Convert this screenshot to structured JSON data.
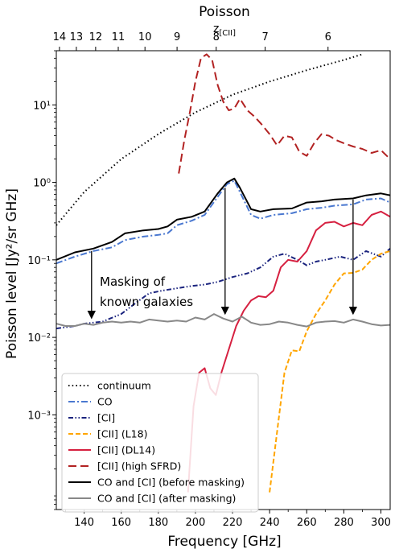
{
  "chart_data": {
    "type": "line",
    "title": "Poisson",
    "xlabel": "Frequency [GHz]",
    "ylabel": "Poisson level [Jy²/sr GHz]",
    "top_axis_label": "z[CII]",
    "x_range": [
      125,
      305
    ],
    "y_range": [
      6e-05,
      50
    ],
    "y_scale": "log",
    "x_ticks": [
      140,
      160,
      180,
      200,
      220,
      240,
      260,
      280,
      300
    ],
    "y_ticks": [
      {
        "value": 0.001,
        "label": "10⁻³"
      },
      {
        "value": 0.01,
        "label": "10⁻²"
      },
      {
        "value": 0.1,
        "label": "10⁻¹"
      },
      {
        "value": 1,
        "label": "10⁰"
      },
      {
        "value": 10,
        "label": "10¹"
      }
    ],
    "z_ticks": [
      {
        "z": "14",
        "freq": 126.7
      },
      {
        "z": "13",
        "freq": 135.8
      },
      {
        "z": "12",
        "freq": 146.2
      },
      {
        "z": "11",
        "freq": 158.4
      },
      {
        "z": "10",
        "freq": 172.8
      },
      {
        "z": "9",
        "freq": 190.1
      },
      {
        "z": "8",
        "freq": 211.2
      },
      {
        "z": "7",
        "freq": 237.6
      },
      {
        "z": "6",
        "freq": 271.5
      }
    ],
    "annotation": {
      "text_line1": "Masking of",
      "text_line2": "known galaxies",
      "arrows": [
        {
          "x": 144,
          "from": 0.13,
          "to": 0.015
        },
        {
          "x": 216,
          "from": 0.85,
          "to": 0.017
        },
        {
          "x": 285,
          "from": 0.6,
          "to": 0.017
        }
      ]
    },
    "legend_position": "lower-left",
    "series": [
      {
        "name": "continuum",
        "color": "#000000",
        "style": "dotted",
        "x": [
          125,
          140,
          160,
          180,
          200,
          220,
          240,
          260,
          280,
          290
        ],
        "y": [
          0.28,
          0.75,
          2.0,
          4.2,
          8.0,
          13.5,
          20.0,
          28.0,
          38.0,
          45.0
        ]
      },
      {
        "name": "CO",
        "color": "#4a78d0",
        "style": "dashdot",
        "x": [
          125,
          135,
          145,
          155,
          162,
          172,
          180,
          185,
          190,
          198,
          205,
          212,
          217,
          221,
          224,
          230,
          235,
          242,
          252,
          260,
          268,
          275,
          285,
          292,
          300,
          305
        ],
        "y": [
          0.09,
          0.11,
          0.13,
          0.145,
          0.18,
          0.2,
          0.21,
          0.22,
          0.28,
          0.32,
          0.38,
          0.65,
          0.95,
          1.05,
          0.75,
          0.38,
          0.34,
          0.38,
          0.4,
          0.45,
          0.47,
          0.5,
          0.52,
          0.6,
          0.62,
          0.55
        ]
      },
      {
        "name": "[CI]",
        "color": "#1a237e",
        "style": "dashdotdot",
        "x": [
          125,
          135,
          140,
          150,
          160,
          168,
          175,
          182,
          190,
          198,
          205,
          212,
          220,
          228,
          235,
          242,
          248,
          255,
          260,
          265,
          270,
          278,
          285,
          292,
          300,
          305
        ],
        "y": [
          0.013,
          0.014,
          0.015,
          0.016,
          0.02,
          0.028,
          0.037,
          0.04,
          0.043,
          0.046,
          0.048,
          0.052,
          0.06,
          0.067,
          0.08,
          0.11,
          0.12,
          0.1,
          0.085,
          0.095,
          0.1,
          0.11,
          0.1,
          0.13,
          0.11,
          0.14
        ]
      },
      {
        "name": "[CII] (L18)",
        "color": "#ffa500",
        "style": "dashed",
        "x": [
          240,
          244,
          248,
          252,
          256,
          260,
          265,
          270,
          275,
          280,
          285,
          290,
          295,
          300,
          305
        ],
        "y": [
          0.0001,
          0.0006,
          0.0035,
          0.0068,
          0.0066,
          0.012,
          0.02,
          0.03,
          0.048,
          0.067,
          0.068,
          0.075,
          0.1,
          0.12,
          0.13
        ]
      },
      {
        "name": "[CII] (DL14)",
        "color": "#d62040",
        "style": "solid",
        "x": [
          196,
          199,
          202,
          205,
          208,
          211,
          214,
          218,
          222,
          226,
          230,
          234,
          238,
          242,
          246,
          250,
          255,
          260,
          265,
          270,
          275,
          280,
          285,
          290,
          295,
          300,
          305
        ],
        "y": [
          0.0001,
          0.0013,
          0.0035,
          0.004,
          0.0022,
          0.0018,
          0.0035,
          0.007,
          0.014,
          0.022,
          0.03,
          0.034,
          0.033,
          0.04,
          0.08,
          0.1,
          0.095,
          0.13,
          0.24,
          0.3,
          0.31,
          0.27,
          0.3,
          0.28,
          0.38,
          0.42,
          0.36
        ]
      },
      {
        "name": "[CII] (high SFRD)",
        "color": "#b22222",
        "style": "longdash",
        "x": [
          191,
          194,
          197,
          200,
          203,
          206,
          209,
          212,
          215,
          218,
          221,
          224,
          228,
          232,
          236,
          240,
          244,
          248,
          252,
          256,
          260,
          264,
          268,
          272,
          276,
          280,
          285,
          290,
          295,
          300,
          305
        ],
        "y": [
          1.3,
          3.5,
          8.0,
          20.0,
          40.0,
          45.0,
          38.0,
          18.0,
          11.0,
          8.5,
          9.0,
          12.0,
          8.5,
          7.0,
          5.5,
          4.2,
          3.0,
          4.0,
          3.8,
          2.5,
          2.2,
          3.2,
          4.2,
          4.0,
          3.5,
          3.2,
          2.9,
          2.7,
          2.4,
          2.6,
          2.0
        ]
      },
      {
        "name": "CO and [CI] (before masking)",
        "color": "#000000",
        "style": "solid",
        "x": [
          125,
          135,
          145,
          155,
          162,
          172,
          180,
          185,
          190,
          198,
          205,
          212,
          217,
          221,
          224,
          230,
          235,
          242,
          252,
          260,
          268,
          275,
          285,
          292,
          300,
          305
        ],
        "y": [
          0.1,
          0.125,
          0.14,
          0.17,
          0.22,
          0.24,
          0.25,
          0.27,
          0.33,
          0.36,
          0.42,
          0.72,
          1.0,
          1.12,
          0.85,
          0.45,
          0.42,
          0.45,
          0.46,
          0.55,
          0.57,
          0.6,
          0.62,
          0.68,
          0.72,
          0.68
        ]
      },
      {
        "name": "CO and [CI] (after masking)",
        "color": "#888888",
        "style": "solid",
        "x": [
          125,
          130,
          135,
          140,
          145,
          150,
          155,
          160,
          165,
          170,
          175,
          180,
          185,
          190,
          195,
          200,
          205,
          210,
          215,
          220,
          225,
          230,
          235,
          240,
          245,
          250,
          255,
          260,
          265,
          270,
          275,
          280,
          285,
          290,
          295,
          300,
          305
        ],
        "y": [
          0.015,
          0.014,
          0.014,
          0.015,
          0.0145,
          0.0155,
          0.016,
          0.0155,
          0.016,
          0.0155,
          0.017,
          0.0165,
          0.016,
          0.0165,
          0.016,
          0.018,
          0.017,
          0.02,
          0.0175,
          0.016,
          0.0185,
          0.0155,
          0.0145,
          0.0148,
          0.016,
          0.0155,
          0.0145,
          0.0138,
          0.0155,
          0.016,
          0.0162,
          0.0155,
          0.017,
          0.016,
          0.0148,
          0.0142,
          0.0145
        ]
      }
    ]
  }
}
